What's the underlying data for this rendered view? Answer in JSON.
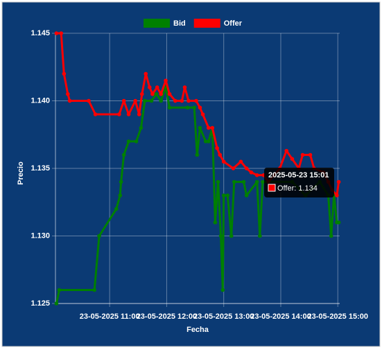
{
  "chart_data": {
    "type": "line",
    "xlabel": "Fecha",
    "ylabel": "Precio",
    "xlim": [
      "2025-05-23 10:03",
      "2025-05-23 15:02"
    ],
    "xticks": [
      {
        "value": "2025-05-23 11:00",
        "label": "23-05-2025 11:00"
      },
      {
        "value": "2025-05-23 12:00",
        "label": "23-05-2025 12:00"
      },
      {
        "value": "2025-05-23 13:00",
        "label": "23-05-2025 13:00"
      },
      {
        "value": "2025-05-23 14:00",
        "label": "23-05-2025 14:00"
      },
      {
        "value": "2025-05-23 15:00",
        "label": "23-05-2025 15:00"
      }
    ],
    "ylim": [
      1.125,
      1.145
    ],
    "yticks": [
      1.125,
      {
        "value": 1.13,
        "label": "1.130"
      },
      1.135,
      {
        "value": 1.14,
        "label": "1.140"
      },
      1.145
    ],
    "grid": true,
    "legend": "top",
    "series": [
      {
        "name": "Bid",
        "color": "#008000",
        "x": [
          "2025-05-23 10:04",
          "2025-05-23 10:07",
          "2025-05-23 10:44",
          "2025-05-23 10:49",
          "2025-05-23 11:07",
          "2025-05-23 11:11",
          "2025-05-23 11:12",
          "2025-05-23 11:15",
          "2025-05-23 11:20",
          "2025-05-23 11:28",
          "2025-05-23 11:33",
          "2025-05-23 11:37",
          "2025-05-23 11:44",
          "2025-05-23 11:49",
          "2025-05-23 11:54",
          "2025-05-23 11:59",
          "2025-05-23 12:03",
          "2025-05-23 12:22",
          "2025-05-23 12:29",
          "2025-05-23 12:32",
          "2025-05-23 12:35",
          "2025-05-23 12:41",
          "2025-05-23 12:44",
          "2025-05-23 12:48",
          "2025-05-23 12:51",
          "2025-05-23 12:54",
          "2025-05-23 12:57",
          "2025-05-23 12:59",
          "2025-05-23 13:00",
          "2025-05-23 13:04",
          "2025-05-23 13:08",
          "2025-05-23 13:11",
          "2025-05-23 13:21",
          "2025-05-23 13:24",
          "2025-05-23 13:35",
          "2025-05-23 13:38",
          "2025-05-23 13:41",
          "2025-05-23 14:12",
          "2025-05-23 14:26",
          "2025-05-23 14:41",
          "2025-05-23 14:50",
          "2025-05-23 14:53",
          "2025-05-23 14:56",
          "2025-05-23 14:59",
          "2025-05-23 15:01"
        ],
        "values": [
          1.125,
          1.126,
          1.126,
          1.13,
          1.132,
          1.133,
          1.134,
          1.136,
          1.137,
          1.137,
          1.138,
          1.14,
          1.14,
          1.1405,
          1.14,
          1.141,
          1.1395,
          1.1395,
          1.1395,
          1.136,
          1.138,
          1.137,
          1.137,
          1.138,
          1.131,
          1.134,
          1.13,
          1.126,
          1.133,
          1.133,
          1.13,
          1.134,
          1.134,
          1.133,
          1.134,
          1.13,
          1.134,
          1.134,
          1.133,
          1.134,
          1.133,
          1.13,
          1.133,
          1.131,
          1.131
        ]
      },
      {
        "name": "Offer",
        "color": "#ff0000",
        "x": [
          "2025-05-23 10:04",
          "2025-05-23 10:09",
          "2025-05-23 10:12",
          "2025-05-23 10:16",
          "2025-05-23 10:18",
          "2025-05-23 10:38",
          "2025-05-23 10:45",
          "2025-05-23 11:10",
          "2025-05-23 11:15",
          "2025-05-23 11:20",
          "2025-05-23 11:27",
          "2025-05-23 11:31",
          "2025-05-23 11:34",
          "2025-05-23 11:38",
          "2025-05-23 11:42",
          "2025-05-23 11:45",
          "2025-05-23 11:50",
          "2025-05-23 11:54",
          "2025-05-23 11:59",
          "2025-05-23 12:03",
          "2025-05-23 12:09",
          "2025-05-23 12:16",
          "2025-05-23 12:19",
          "2025-05-23 12:23",
          "2025-05-23 12:31",
          "2025-05-23 12:35",
          "2025-05-23 12:38",
          "2025-05-23 12:44",
          "2025-05-23 12:48",
          "2025-05-23 12:53",
          "2025-05-23 12:56",
          "2025-05-23 13:00",
          "2025-05-23 13:10",
          "2025-05-23 13:18",
          "2025-05-23 13:24",
          "2025-05-23 13:29",
          "2025-05-23 13:35",
          "2025-05-23 13:42",
          "2025-05-23 13:47",
          "2025-05-23 13:53",
          "2025-05-23 13:59",
          "2025-05-23 14:06",
          "2025-05-23 14:12",
          "2025-05-23 14:19",
          "2025-05-23 14:23",
          "2025-05-23 14:31",
          "2025-05-23 14:35",
          "2025-05-23 14:45",
          "2025-05-23 14:50",
          "2025-05-23 14:54",
          "2025-05-23 14:59",
          "2025-05-23 15:01"
        ],
        "values": [
          1.145,
          1.145,
          1.142,
          1.1405,
          1.14,
          1.14,
          1.139,
          1.139,
          1.14,
          1.139,
          1.14,
          1.139,
          1.1405,
          1.142,
          1.141,
          1.1405,
          1.141,
          1.1405,
          1.1415,
          1.1405,
          1.14,
          1.14,
          1.141,
          1.14,
          1.14,
          1.1395,
          1.139,
          1.138,
          1.138,
          1.1365,
          1.136,
          1.1355,
          1.135,
          1.1355,
          1.135,
          1.1347,
          1.1345,
          1.1345,
          1.134,
          1.1345,
          1.135,
          1.1363,
          1.1357,
          1.135,
          1.136,
          1.136,
          1.135,
          1.1347,
          1.134,
          1.1334,
          1.133,
          1.134
        ]
      }
    ],
    "tooltip": {
      "title": "2025-05-23 15:01",
      "label": "Offer: 1.134"
    }
  }
}
